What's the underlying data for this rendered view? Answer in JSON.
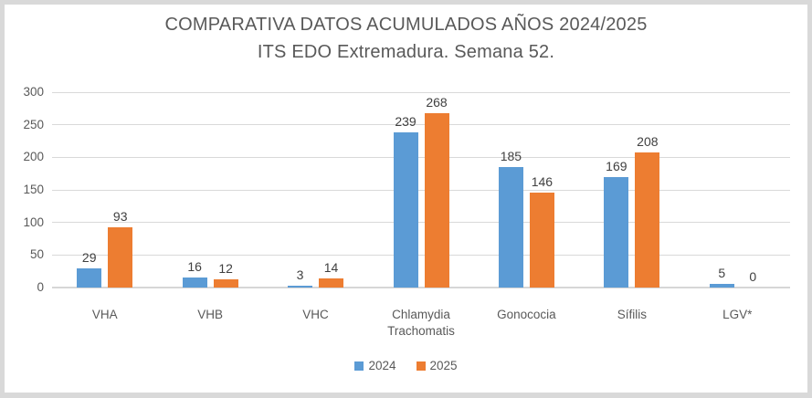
{
  "chart_data": {
    "type": "bar",
    "title": "COMPARATIVA DATOS ACUMULADOS AÑOS 2024/2025",
    "subtitle": "ITS EDO Extremadura. Semana 52.",
    "categories": [
      "VHA",
      "VHB",
      "VHC",
      "Chlamydia Trachomatis",
      "Gonococia",
      "Sífilis",
      "LGV*"
    ],
    "series": [
      {
        "name": "2024",
        "color": "#5B9BD5",
        "values": [
          29,
          16,
          3,
          239,
          185,
          169,
          5
        ]
      },
      {
        "name": "2025",
        "color": "#ED7D31",
        "values": [
          93,
          12,
          14,
          268,
          146,
          208,
          0
        ]
      }
    ],
    "ylim": [
      0,
      300
    ],
    "yticks": [
      0,
      50,
      100,
      150,
      200,
      250,
      300
    ],
    "grid": true,
    "data_labels": true,
    "legend_position": "bottom"
  },
  "colors": {
    "frame_border": "#D9D9D9",
    "background": "#FFFFFF",
    "gridline": "#D9D9D9",
    "title_text": "#595959",
    "axis_text": "#595959",
    "data_label_text": "#404040"
  }
}
